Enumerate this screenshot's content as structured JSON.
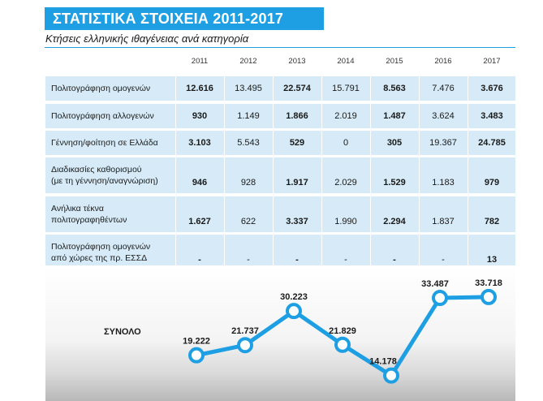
{
  "title": "ΣΤΑΤΙΣΤΙΚΑ ΣΤΟΙΧΕΙΑ 2011-2017",
  "subtitle": "Κτήσεις ελληνικής ιθαγένειας ανά κατηγορία",
  "colors": {
    "accent": "#1e9fe3",
    "row_bg": "#d6ebf7"
  },
  "chart_data": {
    "type": "table",
    "years": [
      "2011",
      "2012",
      "2013",
      "2014",
      "2015",
      "2016",
      "2017"
    ],
    "rows": [
      {
        "label": [
          "Πολιτογράφηση ομογενών"
        ],
        "values": [
          "12.616",
          "13.495",
          "22.574",
          "15.791",
          "8.563",
          "7.476",
          "3.676"
        ]
      },
      {
        "label": [
          "Πολιτογράφηση αλλογενών"
        ],
        "values": [
          "930",
          "1.149",
          "1.866",
          "2.019",
          "1.487",
          "3.624",
          "3.483"
        ]
      },
      {
        "label": [
          "Γέννηση/φοίτηση σε Ελλάδα"
        ],
        "values": [
          "3.103",
          "5.543",
          "529",
          "0",
          "305",
          "19.367",
          "24.785"
        ]
      },
      {
        "label": [
          "Διαδικασίες καθορισμού",
          "(με τη γέννηση/αναγνώριση)"
        ],
        "values": [
          "946",
          "928",
          "1.917",
          "2.029",
          "1.529",
          "1.183",
          "979"
        ]
      },
      {
        "label": [
          "Ανήλικα τέκνα",
          "πολιτογραφηθέντων"
        ],
        "values": [
          "1.627",
          "622",
          "3.337",
          "1.990",
          "2.294",
          "1.837",
          "782"
        ]
      },
      {
        "label": [
          "Πολιτογράφηση ομογενών",
          "από χώρες της πρ. ΕΣΣΔ"
        ],
        "values": [
          "-",
          "-",
          "-",
          "-",
          "-",
          "-",
          "13"
        ]
      }
    ],
    "total": {
      "label": "ΣΥΝΟΛΟ",
      "type": "line",
      "x": [
        "2011",
        "2012",
        "2013",
        "2014",
        "2015",
        "2016",
        "2017"
      ],
      "y": [
        19222,
        21737,
        30223,
        21829,
        14178,
        33487,
        33718
      ],
      "labels": [
        "19.222",
        "21.737",
        "30.223",
        "21.829",
        "14.178",
        "33.487",
        "33.718"
      ]
    }
  }
}
